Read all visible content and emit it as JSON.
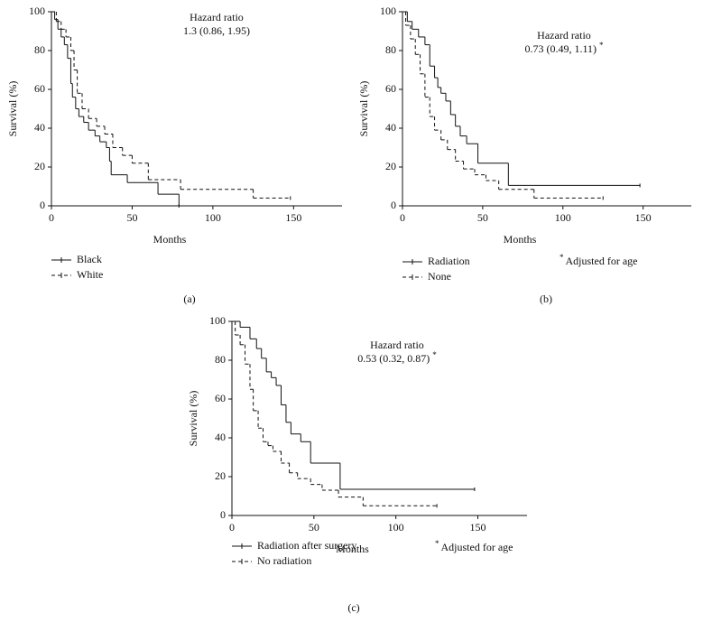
{
  "chart_data": [
    {
      "type": "line",
      "label": "(a)",
      "xlabel": "Months",
      "ylabel": "Survival (%)",
      "hazard_label": "Hazard ratio",
      "hazard_value": "1.3 (0.86, 1.95)",
      "xlim": [
        0,
        180
      ],
      "xticks": [
        0,
        50,
        100,
        150
      ],
      "ylim": [
        0,
        100
      ],
      "yticks": [
        0,
        20,
        40,
        60,
        80,
        100
      ],
      "series": [
        {
          "name": "Black",
          "color": "#111111",
          "linestyle": "solid",
          "x": [
            0,
            2,
            4,
            6,
            8,
            10,
            12,
            13,
            15,
            17,
            20,
            23,
            27,
            30,
            34,
            36,
            37,
            47,
            66,
            79
          ],
          "values": [
            100,
            96,
            91,
            87,
            83,
            76,
            63,
            56,
            50,
            46,
            43,
            39,
            36,
            33,
            30,
            23,
            16,
            12,
            6,
            0
          ]
        },
        {
          "name": "White",
          "color": "#111111",
          "linestyle": "dashed",
          "x": [
            0,
            3,
            6,
            9,
            12,
            14,
            16,
            19,
            23,
            28,
            33,
            38,
            44,
            50,
            60,
            80,
            125,
            148
          ],
          "values": [
            100,
            95,
            91,
            87,
            80,
            70,
            58,
            50,
            45,
            41,
            37,
            30,
            26,
            22,
            13.5,
            8.5,
            4,
            4
          ]
        }
      ]
    },
    {
      "type": "line",
      "label": "(b)",
      "xlabel": "Months",
      "ylabel": "Survival (%)",
      "hazard_label": "Hazard ratio",
      "hazard_value": "0.73 (0.49, 1.11)",
      "note_mark": "*",
      "note": "Adjusted for age",
      "xlim": [
        0,
        180
      ],
      "xticks": [
        0,
        50,
        100,
        150
      ],
      "ylim": [
        0,
        100
      ],
      "yticks": [
        0,
        20,
        40,
        60,
        80,
        100
      ],
      "series": [
        {
          "name": "Radiation",
          "color": "#111111",
          "linestyle": "solid",
          "x": [
            0,
            3,
            6,
            10,
            14,
            17,
            20,
            22,
            24,
            27,
            30,
            33,
            36,
            40,
            47,
            66,
            148
          ],
          "values": [
            100,
            95,
            91,
            87,
            83,
            72,
            66,
            61,
            58,
            54,
            47,
            41,
            36,
            32,
            22,
            10.5,
            10.5
          ]
        },
        {
          "name": "None",
          "color": "#111111",
          "linestyle": "dashed",
          "x": [
            0,
            2,
            5,
            8,
            11,
            14,
            17,
            20,
            24,
            28,
            33,
            38,
            45,
            52,
            60,
            82,
            125
          ],
          "values": [
            100,
            93,
            86,
            78,
            68,
            56,
            46,
            39,
            34,
            29,
            23,
            19,
            16,
            13,
            8.5,
            4,
            4
          ]
        }
      ]
    },
    {
      "type": "line",
      "label": "(c)",
      "xlabel": "Months",
      "ylabel": "Survival (%)",
      "hazard_label": "Hazard ratio",
      "hazard_value": "0.53 (0.32, 0.87)",
      "note_mark": "*",
      "note": "Adjusted for age",
      "xlim": [
        0,
        180
      ],
      "xticks": [
        0,
        50,
        100,
        150
      ],
      "ylim": [
        0,
        100
      ],
      "yticks": [
        0,
        20,
        40,
        60,
        80,
        100
      ],
      "series": [
        {
          "name": "Radiation after surgery",
          "color": "#111111",
          "linestyle": "solid",
          "x": [
            0,
            5,
            11,
            15,
            18,
            21,
            24,
            27,
            30,
            33,
            36,
            42,
            48,
            66,
            148
          ],
          "values": [
            100,
            97,
            91,
            86,
            81,
            74,
            71,
            67,
            57,
            48,
            42,
            38,
            27,
            13.5,
            13.5
          ]
        },
        {
          "name": "No radiation",
          "color": "#111111",
          "linestyle": "dashed",
          "x": [
            0,
            2,
            5,
            8,
            11,
            13,
            16,
            19,
            22,
            25,
            30,
            35,
            40,
            48,
            55,
            65,
            80,
            125
          ],
          "values": [
            100,
            93,
            88,
            78,
            65,
            54,
            45,
            38,
            36,
            33,
            27,
            22,
            19,
            16,
            13,
            9.5,
            5,
            5
          ]
        }
      ]
    }
  ]
}
